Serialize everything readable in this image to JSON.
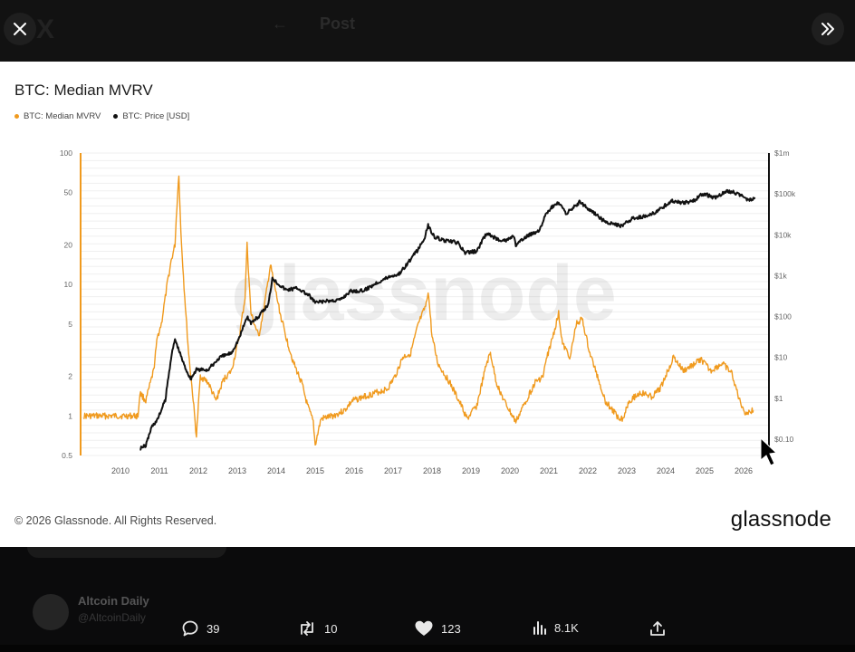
{
  "topbar": {
    "title": "Post"
  },
  "chart": {
    "title": "BTC: Median MVRV",
    "legend": [
      {
        "label": "BTC: Median MVRV",
        "color": "#f09a1e"
      },
      {
        "label": "BTC: Price [USD]",
        "color": "#111111"
      }
    ],
    "watermark": "glassnode",
    "copyright": "© 2026 Glassnode. All Rights Reserved.",
    "brand": "glassnode"
  },
  "chart_data": {
    "type": "line",
    "title": "BTC: Median MVRV",
    "x_ticks": [
      "2010",
      "2011",
      "2012",
      "2013",
      "2014",
      "2015",
      "2016",
      "2017",
      "2018",
      "2019",
      "2020",
      "2021",
      "2022",
      "2023",
      "2024",
      "2025",
      "2026"
    ],
    "y_left_scale": "log",
    "y_left_ticks": [
      "100",
      "50",
      "20",
      "10",
      "5",
      "2",
      "1",
      "0.5"
    ],
    "y_right_scale": "log",
    "y_right_ticks": [
      "$1m",
      "$100k",
      "$10k",
      "$1k",
      "$100",
      "$10",
      "$1",
      "$0.10"
    ],
    "grid": true,
    "legend_position": "top-left",
    "series": [
      {
        "name": "BTC: Median MVRV",
        "color": "#f09a1e",
        "axis": "left",
        "points": [
          [
            2009.1,
            1
          ],
          [
            2010.5,
            1
          ],
          [
            2010.55,
            1.5
          ],
          [
            2010.7,
            1.3
          ],
          [
            2010.9,
            2.2
          ],
          [
            2011.0,
            4
          ],
          [
            2011.1,
            5
          ],
          [
            2011.25,
            10
          ],
          [
            2011.35,
            15
          ],
          [
            2011.45,
            20
          ],
          [
            2011.5,
            40
          ],
          [
            2011.55,
            70
          ],
          [
            2011.6,
            25
          ],
          [
            2011.7,
            8
          ],
          [
            2011.8,
            3
          ],
          [
            2011.9,
            1.5
          ],
          [
            2012.0,
            0.7
          ],
          [
            2012.1,
            2
          ],
          [
            2012.3,
            1.8
          ],
          [
            2012.5,
            1.3
          ],
          [
            2012.7,
            1.9
          ],
          [
            2012.9,
            2.2
          ],
          [
            2013.1,
            4
          ],
          [
            2013.25,
            8
          ],
          [
            2013.3,
            20
          ],
          [
            2013.4,
            6
          ],
          [
            2013.6,
            4
          ],
          [
            2013.75,
            7
          ],
          [
            2013.9,
            14
          ],
          [
            2014.0,
            10
          ],
          [
            2014.15,
            6
          ],
          [
            2014.3,
            4
          ],
          [
            2014.5,
            2.5
          ],
          [
            2014.7,
            1.8
          ],
          [
            2014.85,
            1.2
          ],
          [
            2015.0,
            0.9
          ],
          [
            2015.05,
            0.6
          ],
          [
            2015.2,
            0.95
          ],
          [
            2015.5,
            1
          ],
          [
            2015.8,
            1.1
          ],
          [
            2016.0,
            1.3
          ],
          [
            2016.3,
            1.4
          ],
          [
            2016.6,
            1.5
          ],
          [
            2016.9,
            1.6
          ],
          [
            2017.1,
            2
          ],
          [
            2017.3,
            2.8
          ],
          [
            2017.5,
            3
          ],
          [
            2017.7,
            5
          ],
          [
            2017.9,
            7
          ],
          [
            2017.95,
            9
          ],
          [
            2018.05,
            4
          ],
          [
            2018.2,
            2.5
          ],
          [
            2018.5,
            1.8
          ],
          [
            2018.8,
            1.2
          ],
          [
            2018.95,
            0.95
          ],
          [
            2019.2,
            1.2
          ],
          [
            2019.45,
            2.5
          ],
          [
            2019.55,
            3
          ],
          [
            2019.7,
            1.8
          ],
          [
            2019.9,
            1.3
          ],
          [
            2020.2,
            0.9
          ],
          [
            2020.4,
            1.2
          ],
          [
            2020.7,
            1.8
          ],
          [
            2020.9,
            2
          ],
          [
            2021.0,
            2.8
          ],
          [
            2021.15,
            4
          ],
          [
            2021.3,
            6
          ],
          [
            2021.4,
            3.5
          ],
          [
            2021.6,
            2.8
          ],
          [
            2021.75,
            5
          ],
          [
            2021.9,
            5.5
          ],
          [
            2022.1,
            3
          ],
          [
            2022.3,
            2
          ],
          [
            2022.5,
            1.3
          ],
          [
            2022.8,
            1
          ],
          [
            2022.95,
            0.95
          ],
          [
            2023.1,
            1.3
          ],
          [
            2023.4,
            1.5
          ],
          [
            2023.7,
            1.4
          ],
          [
            2023.9,
            1.6
          ],
          [
            2024.1,
            2.2
          ],
          [
            2024.25,
            2.8
          ],
          [
            2024.5,
            2.2
          ],
          [
            2024.8,
            2.5
          ],
          [
            2024.95,
            2.7
          ],
          [
            2025.2,
            2.2
          ],
          [
            2025.5,
            2.5
          ],
          [
            2025.75,
            2.1
          ],
          [
            2025.95,
            1.3
          ],
          [
            2026.1,
            1.05
          ],
          [
            2026.3,
            1.1
          ]
        ]
      },
      {
        "name": "BTC: Price [USD]",
        "color": "#111111",
        "axis": "right",
        "points": [
          [
            2010.55,
            0.06
          ],
          [
            2010.7,
            0.07
          ],
          [
            2010.85,
            0.2
          ],
          [
            2011.0,
            0.3
          ],
          [
            2011.2,
            0.9
          ],
          [
            2011.35,
            10
          ],
          [
            2011.45,
            28
          ],
          [
            2011.55,
            15
          ],
          [
            2011.7,
            6
          ],
          [
            2011.85,
            3
          ],
          [
            2012.0,
            5
          ],
          [
            2012.3,
            5
          ],
          [
            2012.6,
            10
          ],
          [
            2012.9,
            13
          ],
          [
            2013.1,
            30
          ],
          [
            2013.3,
            100
          ],
          [
            2013.4,
            70
          ],
          [
            2013.6,
            100
          ],
          [
            2013.85,
            200
          ],
          [
            2013.95,
            900
          ],
          [
            2014.05,
            700
          ],
          [
            2014.3,
            450
          ],
          [
            2014.6,
            500
          ],
          [
            2014.9,
            320
          ],
          [
            2015.05,
            220
          ],
          [
            2015.4,
            240
          ],
          [
            2015.7,
            260
          ],
          [
            2015.95,
            420
          ],
          [
            2016.3,
            430
          ],
          [
            2016.6,
            650
          ],
          [
            2016.95,
            950
          ],
          [
            2017.2,
            1100
          ],
          [
            2017.5,
            2500
          ],
          [
            2017.7,
            4500
          ],
          [
            2017.85,
            8000
          ],
          [
            2017.95,
            17000
          ],
          [
            2018.1,
            9000
          ],
          [
            2018.4,
            7000
          ],
          [
            2018.7,
            6500
          ],
          [
            2018.9,
            3600
          ],
          [
            2019.2,
            4000
          ],
          [
            2019.45,
            11000
          ],
          [
            2019.7,
            8000
          ],
          [
            2019.95,
            7200
          ],
          [
            2020.15,
            9500
          ],
          [
            2020.2,
            5500
          ],
          [
            2020.5,
            9500
          ],
          [
            2020.8,
            13000
          ],
          [
            2020.95,
            28000
          ],
          [
            2021.1,
            45000
          ],
          [
            2021.3,
            60000
          ],
          [
            2021.5,
            33000
          ],
          [
            2021.85,
            65000
          ],
          [
            2022.1,
            40000
          ],
          [
            2022.3,
            30000
          ],
          [
            2022.5,
            20000
          ],
          [
            2022.9,
            16500
          ],
          [
            2023.2,
            25000
          ],
          [
            2023.6,
            29000
          ],
          [
            2023.9,
            42000
          ],
          [
            2024.2,
            68000
          ],
          [
            2024.5,
            60000
          ],
          [
            2024.8,
            70000
          ],
          [
            2024.95,
            98000
          ],
          [
            2025.1,
            96000
          ],
          [
            2025.3,
            80000
          ],
          [
            2025.6,
            115000
          ],
          [
            2025.8,
            112000
          ],
          [
            2026.0,
            88000
          ],
          [
            2026.2,
            70000
          ],
          [
            2026.35,
            78000
          ]
        ]
      }
    ]
  },
  "actions": {
    "reply": {
      "count": "39",
      "icon": "reply-icon"
    },
    "repost": {
      "count": "10",
      "icon": "repost-icon"
    },
    "like": {
      "count": "123",
      "icon": "heart-icon"
    },
    "views": {
      "count": "8.1K",
      "icon": "views-icon"
    },
    "share": {
      "icon": "share-icon"
    }
  },
  "background_post": {
    "author": "Altcoin Daily",
    "handle": "@AltcoinDaily"
  }
}
